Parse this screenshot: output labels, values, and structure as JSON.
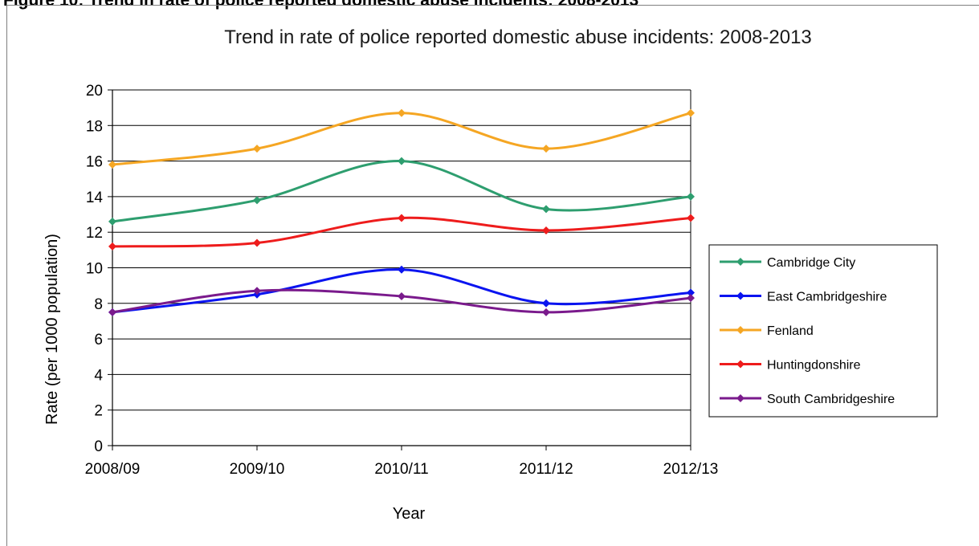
{
  "figure_caption": "Figure 10: Trend in rate of police reported domestic abuse incidents: 2008-2013",
  "chart_data": {
    "type": "line",
    "title": "Trend in rate of police reported domestic abuse incidents: 2008-2013",
    "xlabel": "Year",
    "ylabel": "Rate (per 1000 population)",
    "categories": [
      "2008/09",
      "2009/10",
      "2010/11",
      "2011/12",
      "2012/13"
    ],
    "ylim": [
      0,
      20
    ],
    "yticks": [
      "0",
      "2",
      "4",
      "6",
      "8",
      "10",
      "12",
      "14",
      "16",
      "18",
      "20"
    ],
    "grid": "horizontal",
    "legend_position": "right",
    "series": [
      {
        "name": "Cambridge City",
        "color": "#2e9e6f",
        "values": [
          12.6,
          13.8,
          16.0,
          13.3,
          14.0
        ]
      },
      {
        "name": "East Cambridgeshire",
        "color": "#0a14f0",
        "values": [
          7.5,
          8.5,
          9.9,
          8.0,
          8.6
        ]
      },
      {
        "name": "Fenland",
        "color": "#f5a623",
        "values": [
          15.8,
          16.7,
          18.7,
          16.7,
          18.7
        ]
      },
      {
        "name": "Huntingdonshire",
        "color": "#ee1c1c",
        "values": [
          11.2,
          11.4,
          12.8,
          12.1,
          12.8
        ]
      },
      {
        "name": "South Cambridgeshire",
        "color": "#7a1a8c",
        "values": [
          7.5,
          8.7,
          8.4,
          7.5,
          8.3
        ]
      }
    ]
  }
}
